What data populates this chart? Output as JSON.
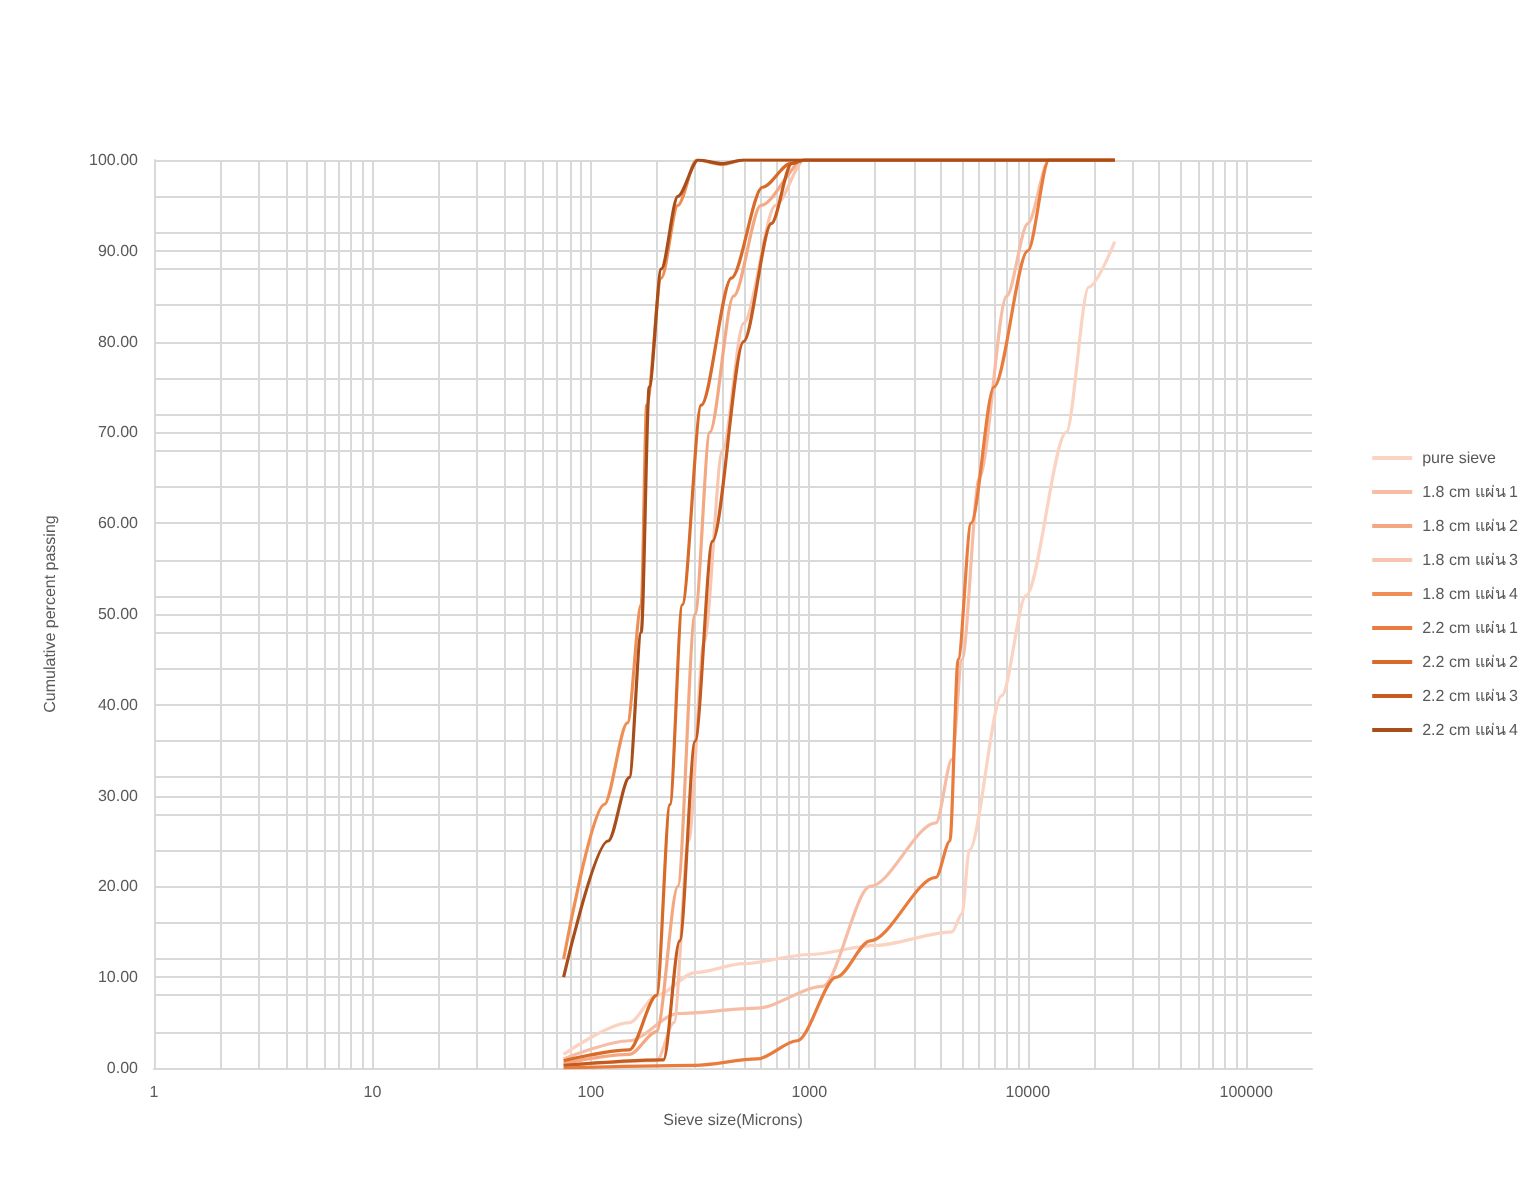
{
  "chart_data": {
    "type": "line",
    "xlabel": "Sieve size(Microns)",
    "ylabel": "Cumulative percent passing",
    "log": "x",
    "grid": true,
    "legend": "right",
    "marker": "none",
    "xlim": [
      1,
      200000
    ],
    "xticks": [
      1,
      10,
      100,
      1000,
      10000,
      100000
    ],
    "ylim": [
      0,
      100
    ],
    "yticks": [
      {
        "value": 0,
        "label": "0.00"
      },
      {
        "value": 10,
        "label": "10.00"
      },
      {
        "value": 20,
        "label": "20.00"
      },
      {
        "value": 30,
        "label": "30.00"
      },
      {
        "value": 40,
        "label": "40.00"
      },
      {
        "value": 50,
        "label": "50.00"
      },
      {
        "value": 60,
        "label": "60.00"
      },
      {
        "value": 70,
        "label": "70.00"
      },
      {
        "value": 80,
        "label": "80.00"
      },
      {
        "value": 90,
        "label": "90.00"
      },
      {
        "value": 100,
        "label": "100.00"
      }
    ],
    "series": [
      {
        "name": "pure sieve",
        "color": "#fbd3c2",
        "x": [
          75,
          150,
          200,
          300,
          500,
          1000,
          2000,
          4500,
          5000,
          5400,
          7600,
          9800,
          15000,
          19000,
          25000
        ],
        "values": [
          1.5,
          5,
          8,
          10.5,
          11.5,
          12.5,
          13.5,
          15,
          17,
          24,
          41,
          52,
          70,
          86,
          91
        ]
      },
      {
        "name": "1.8 cm แผ่น 1",
        "color": "#f6bca4",
        "x": [
          75,
          150,
          250,
          577,
          1150,
          1900,
          3800,
          4500,
          5000,
          6000,
          8000,
          10000,
          12500,
          25000
        ],
        "values": [
          1,
          3,
          6,
          6.6,
          9,
          20,
          27,
          34,
          45,
          65,
          85,
          93,
          100,
          100
        ]
      },
      {
        "name": "1.8 cm แผ่น 2",
        "color": "#f3a882",
        "x": [
          75,
          150,
          200,
          250,
          300,
          350,
          450,
          600,
          950,
          25000
        ],
        "values": [
          0.5,
          1.5,
          4,
          20,
          50,
          70,
          85,
          95,
          100,
          100
        ]
      },
      {
        "name": "1.8 cm แผ่น 3",
        "color": "#f8c6b0",
        "x": [
          75,
          200,
          240,
          280,
          330,
          400,
          500,
          700,
          950,
          25000
        ],
        "values": [
          0.3,
          0.8,
          5,
          25,
          47,
          68,
          82,
          95,
          100,
          100
        ]
      },
      {
        "name": "1.8 cm แผ่น 4",
        "color": "#ef8f55",
        "x": [
          75,
          115,
          147,
          170,
          180,
          210,
          250,
          305,
          400,
          500,
          25000
        ],
        "values": [
          12,
          29,
          38,
          51,
          73,
          87,
          95,
          100,
          99.5,
          100,
          100
        ]
      },
      {
        "name": "2.2 cm แผ่น 1",
        "color": "#e97b3c",
        "x": [
          75,
          300,
          577,
          880,
          1330,
          1900,
          3800,
          4400,
          4800,
          5500,
          7000,
          10000,
          12500,
          25000
        ],
        "values": [
          0,
          0.3,
          1,
          3,
          10,
          14,
          21,
          25,
          45,
          60,
          75,
          90,
          100,
          100
        ]
      },
      {
        "name": "2.2 cm แผ่น 2",
        "color": "#d86a2a",
        "x": [
          75,
          150,
          200,
          230,
          262,
          320,
          440,
          610,
          820,
          950,
          25000
        ],
        "values": [
          0.8,
          2,
          8,
          29,
          51,
          73,
          87,
          97,
          99.6,
          100,
          100
        ]
      },
      {
        "name": "2.2 cm แผ่น 3",
        "color": "#c55b1f",
        "x": [
          75,
          215,
          255,
          300,
          360,
          500,
          670,
          830,
          950,
          25000
        ],
        "values": [
          0.3,
          0.9,
          14,
          36,
          58,
          80,
          93,
          99.6,
          100,
          100
        ]
      },
      {
        "name": "2.2 cm แผ่น 4",
        "color": "#a84e1b",
        "x": [
          75,
          120,
          150,
          170,
          185,
          210,
          250,
          310,
          400,
          500,
          25000
        ],
        "values": [
          10,
          25,
          32,
          48,
          75,
          88,
          96,
          100,
          99.6,
          100,
          100
        ]
      }
    ]
  }
}
